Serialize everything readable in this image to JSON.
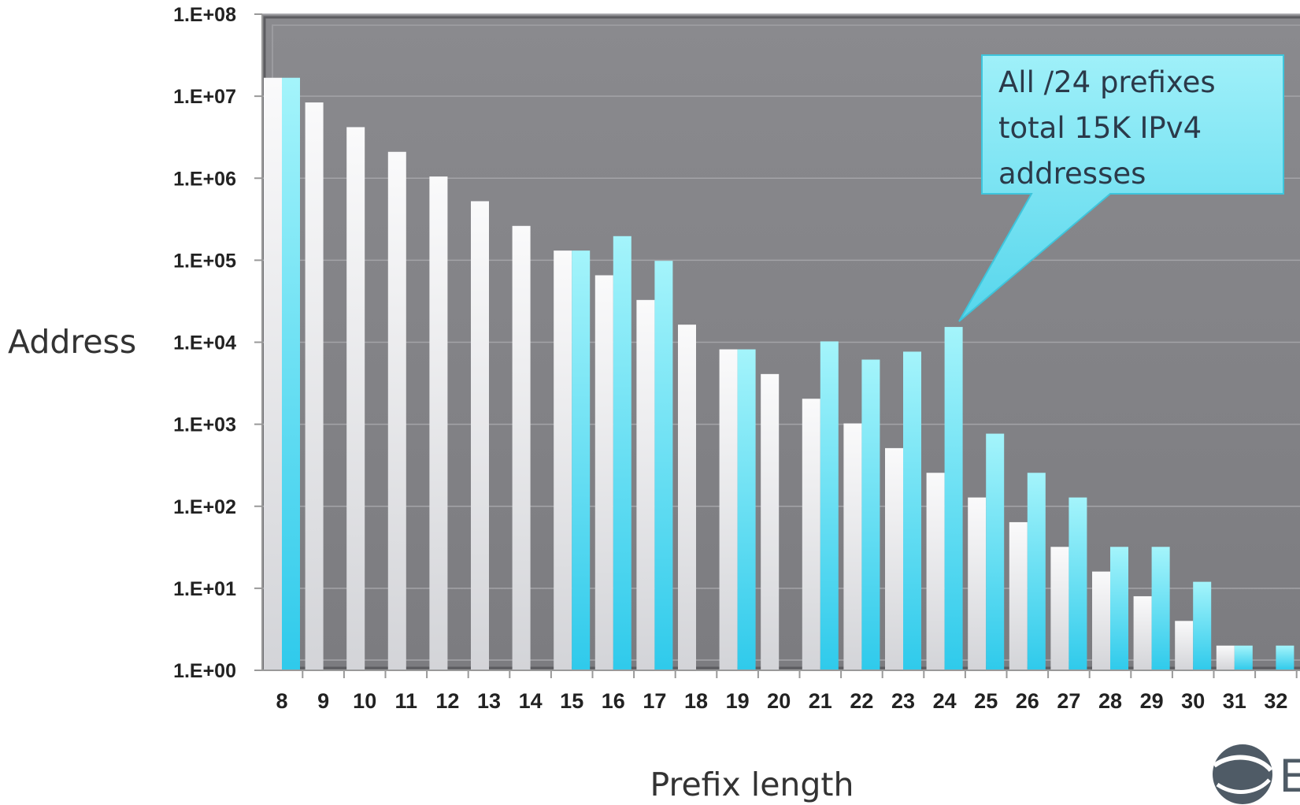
{
  "chart_data": {
    "type": "bar",
    "categories": [
      "8",
      "9",
      "10",
      "11",
      "12",
      "13",
      "14",
      "15",
      "16",
      "17",
      "18",
      "19",
      "20",
      "21",
      "22",
      "23",
      "24",
      "25",
      "26",
      "27",
      "28",
      "29",
      "30",
      "31",
      "32"
    ],
    "series": [
      {
        "values": [
          16777216,
          8388608,
          4194304,
          2097152,
          1048576,
          524288,
          262144,
          131072,
          65536,
          32768,
          16384,
          8192,
          4096,
          2048,
          1024,
          512,
          256,
          128,
          64,
          32,
          16,
          8,
          4,
          2,
          1
        ],
        "color": "#e2e3e6"
      },
      {
        "values": [
          16777216,
          null,
          null,
          null,
          null,
          null,
          null,
          131072,
          196608,
          98304,
          null,
          8192,
          null,
          10240,
          6144,
          7680,
          15360,
          768,
          256,
          128,
          32,
          32,
          12,
          2,
          2
        ],
        "color": "#5bdcef"
      }
    ],
    "scale": "log",
    "ylim": [
      1,
      100000000
    ],
    "yticks": [
      "1.E+00",
      "1.E+01",
      "1.E+02",
      "1.E+03",
      "1.E+04",
      "1.E+05",
      "1.E+06",
      "1.E+07",
      "1.E+08"
    ],
    "xlabel": "Prefix length",
    "ylabel": "Address",
    "grid": true,
    "annotation": {
      "lines": [
        "All /24 prefixes",
        "total 15K IPv4",
        "addresses"
      ],
      "points_to": "24"
    },
    "colors": {
      "plot_bg": "#838386",
      "callout_fill": "#7ee3f2",
      "callout_border": "#3ec5dc"
    }
  },
  "logo": {
    "icon": "globe-swirl-icon",
    "letter": "E"
  }
}
